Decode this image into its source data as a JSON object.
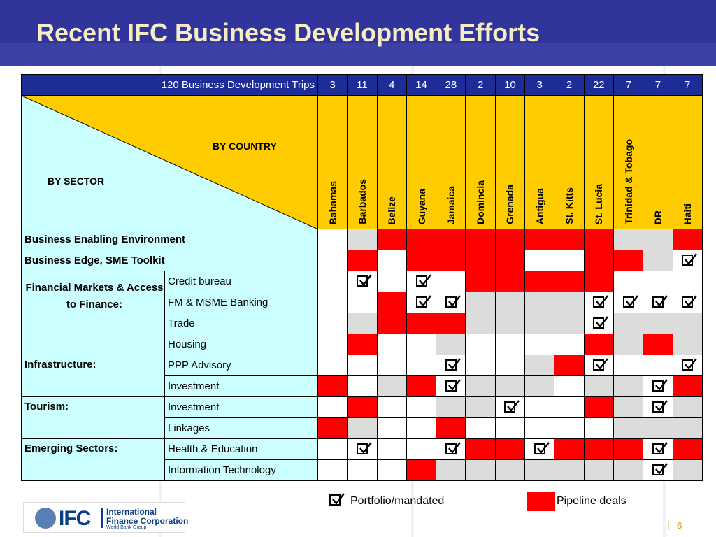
{
  "title": "Recent IFC Business Development Efforts",
  "matrix": {
    "trips_label": "120 Business Development Trips",
    "by_country": "BY COUNTRY",
    "by_sector": "BY SECTOR",
    "countries": [
      {
        "name": "Bahamas",
        "trips": "3"
      },
      {
        "name": "Barbados",
        "trips": "11"
      },
      {
        "name": "Belize",
        "trips": "4"
      },
      {
        "name": "Guyana",
        "trips": "14"
      },
      {
        "name": "Jamaica",
        "trips": "28"
      },
      {
        "name": "Domincia",
        "trips": "2"
      },
      {
        "name": "Grenada",
        "trips": "10"
      },
      {
        "name": "Antigua",
        "trips": "3"
      },
      {
        "name": "St. Kitts",
        "trips": "2"
      },
      {
        "name": "St. Lucia",
        "trips": "22"
      },
      {
        "name": "Trinidad & Tobago",
        "trips": "7"
      },
      {
        "name": "DR",
        "trips": "7"
      },
      {
        "name": "Haiti",
        "trips": "7"
      }
    ],
    "legend_codes": {
      "w": "blank",
      "g": "none",
      "r": "pipeline",
      "c": "portfolio",
      "cg": "portfolio"
    },
    "rows": [
      {
        "sector": "Business Enabling Environment",
        "sub": "",
        "cells": [
          "w",
          "g",
          "r",
          "r",
          "r",
          "r",
          "r",
          "r",
          "r",
          "r",
          "g",
          "g",
          "r"
        ]
      },
      {
        "sector": "Business Edge, SME Toolkit",
        "sub": "",
        "cells": [
          "w",
          "r",
          "w",
          "r",
          "r",
          "r",
          "r",
          "w",
          "w",
          "r",
          "r",
          "g",
          "c"
        ]
      },
      {
        "sector": "Financial Markets & Access to Finance:",
        "sub": "Credit bureau",
        "cells": [
          "w",
          "c",
          "w",
          "c",
          "w",
          "r",
          "r",
          "r",
          "r",
          "r",
          "w",
          "w",
          "w"
        ]
      },
      {
        "sector": "",
        "sub": "FM & MSME Banking",
        "cells": [
          "w",
          "w",
          "r",
          "c",
          "c",
          "g",
          "g",
          "g",
          "g",
          "c",
          "c",
          "c",
          "c"
        ]
      },
      {
        "sector": "",
        "sub": "Trade",
        "cells": [
          "w",
          "g",
          "r",
          "r",
          "r",
          "g",
          "g",
          "g",
          "g",
          "c",
          "g",
          "g",
          "g"
        ]
      },
      {
        "sector": "",
        "sub": "Housing",
        "cells": [
          "w",
          "r",
          "w",
          "w",
          "g",
          "w",
          "w",
          "w",
          "w",
          "r",
          "g",
          "r",
          "g"
        ]
      },
      {
        "sector": "Infrastructure:",
        "sub": "PPP Advisory",
        "cells": [
          "w",
          "w",
          "w",
          "w",
          "c",
          "w",
          "w",
          "g",
          "r",
          "c",
          "w",
          "w",
          "c"
        ]
      },
      {
        "sector": "",
        "sub": "Investment",
        "cells": [
          "r",
          "w",
          "g",
          "r",
          "c",
          "g",
          "g",
          "g",
          "w",
          "g",
          "g",
          "c",
          "r"
        ]
      },
      {
        "sector": "Tourism:",
        "sub": "Investment",
        "cells": [
          "w",
          "r",
          "w",
          "w",
          "g",
          "g",
          "c",
          "w",
          "w",
          "r",
          "g",
          "c",
          "g"
        ]
      },
      {
        "sector": "",
        "sub": "Linkages",
        "cells": [
          "r",
          "g",
          "w",
          "w",
          "r",
          "w",
          "w",
          "w",
          "w",
          "w",
          "g",
          "g",
          "g"
        ]
      },
      {
        "sector": "Emerging Sectors:",
        "sub": "Health & Education",
        "cells": [
          "w",
          "c",
          "w",
          "w",
          "c",
          "r",
          "r",
          "c",
          "r",
          "r",
          "r",
          "c",
          "r"
        ]
      },
      {
        "sector": "",
        "sub": "Information Technology",
        "cells": [
          "w",
          "w",
          "w",
          "r",
          "g",
          "g",
          "g",
          "g",
          "g",
          "g",
          "g",
          "c",
          "g"
        ]
      }
    ]
  },
  "legend": {
    "portfolio": "Portfolio/mandated",
    "pipeline": "Pipeline deals",
    "colors": {
      "pipeline": "#ff0000",
      "header_bar": "#1d2c97",
      "country_header": "#ffcc00",
      "sector_bg": "#ccffff"
    }
  },
  "logo": {
    "abbr": "IFC",
    "line1": "International",
    "line2": "Finance Corporation",
    "line3": "World Bank Group"
  },
  "page": {
    "bar": "|",
    "number": "6"
  }
}
